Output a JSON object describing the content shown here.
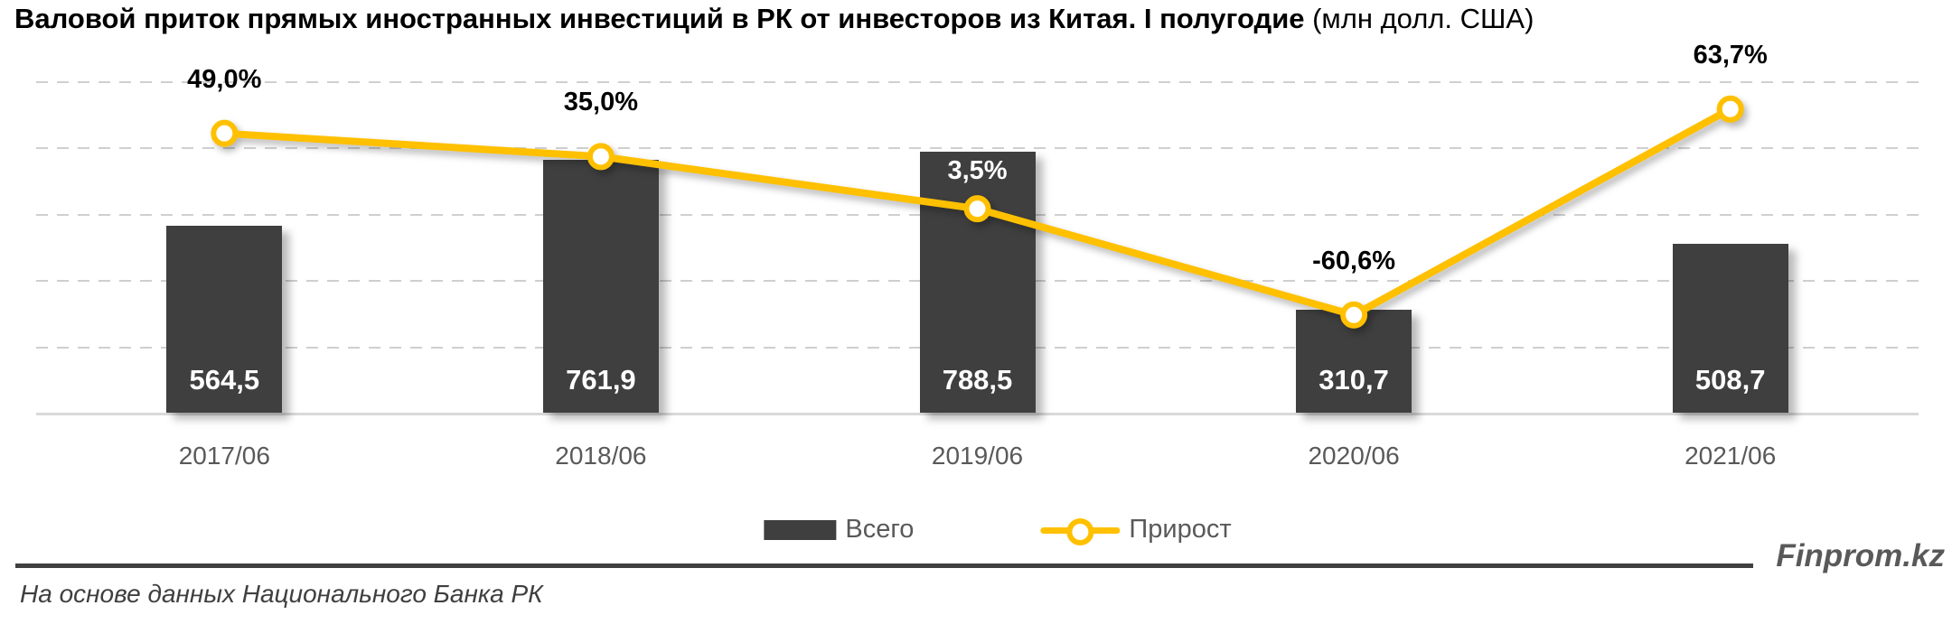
{
  "title": {
    "bold": "Валовой приток прямых иностранных инвестиций в РК от инвесторов из Китая. I полугодие",
    "regular": " (млн долл. США)"
  },
  "chart_data": {
    "type": "combo-bar-line",
    "title": "Валовой приток прямых иностранных инвестиций в РК от инвесторов из Китая. I полугодие (млн долл. США)",
    "categories": [
      "2017/06",
      "2018/06",
      "2019/06",
      "2020/06",
      "2021/06"
    ],
    "series": [
      {
        "name": "Всего",
        "type": "bar",
        "color": "#3f3f3f",
        "values": [
          564.5,
          761.9,
          788.5,
          310.7,
          508.7
        ],
        "labels": [
          "564,5",
          "761,9",
          "788,5",
          "310,7",
          "508,7"
        ]
      },
      {
        "name": "Прирост",
        "type": "line",
        "color": "#ffc000",
        "marker": "circle-open",
        "values": [
          49.0,
          35.0,
          3.5,
          -60.6,
          63.7
        ],
        "labels": [
          "49,0%",
          "35,0%",
          "3,5%",
          "-60,6%",
          "63,7%"
        ]
      }
    ],
    "xlabel": "",
    "ylabel": "",
    "bar_axis": {
      "min": 0,
      "max": 1000,
      "gridline_step": 200,
      "labels_visible": false
    },
    "line_axis_pct": {
      "min": -80,
      "max": 120,
      "pct_per_gridline": 40,
      "labels_visible": false
    },
    "grid": "horizontal-dashed",
    "legend_position": "bottom-center"
  },
  "legend": {
    "items": [
      {
        "label": "Всего",
        "swatch": "bar"
      },
      {
        "label": "Прирост",
        "swatch": "line-marker"
      }
    ]
  },
  "footer": {
    "source": "На основе данных Национального Банка РК",
    "brand": "Finprom.kz"
  },
  "colors": {
    "bar": "#3f3f3f",
    "line": "#ffc000",
    "gridline": "#cfcfcf",
    "axis_baseline": "#d9d9d9",
    "axis_text": "#595959",
    "bar_value_text": "#ffffff",
    "pct_label_text": "#000000",
    "separator": "#404040",
    "brand_text": "#595959"
  }
}
